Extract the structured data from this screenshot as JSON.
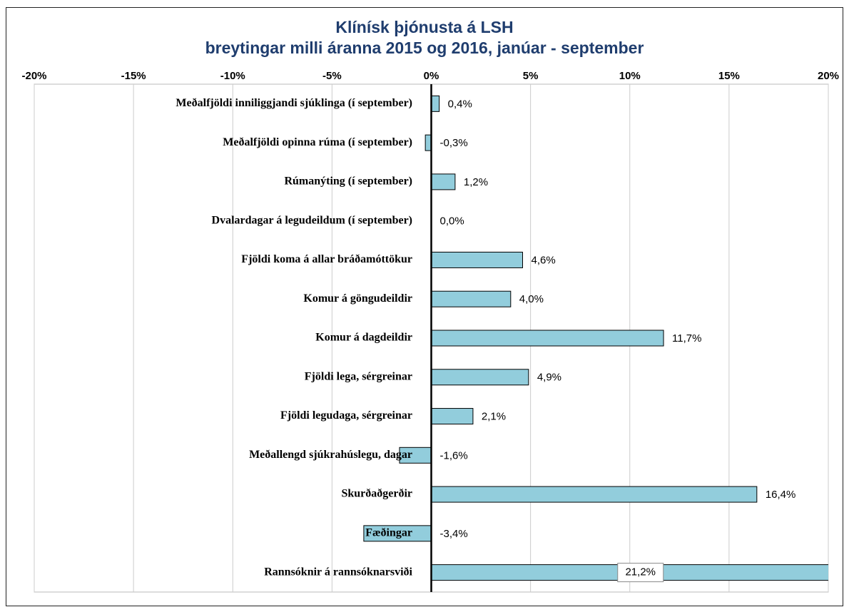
{
  "chart_data": {
    "type": "barh",
    "title": "Klínísk þjónusta á LSH",
    "subtitle": "breytingar milli áranna 2015 og 2016,  janúar - september",
    "categories": [
      "Meðalfjöldi inniliggjandi sjúklinga (í september)",
      "Meðalfjöldi opinna rúma (í september)",
      "Rúmanýting (í september)",
      "Dvalardagar á legudeildum (í september)",
      "Fjöldi koma á allar bráðamóttökur",
      "Komur á göngudeildir",
      "Komur á dagdeildir",
      "Fjöldi lega, sérgreinar",
      "Fjöldi legudaga, sérgreinar",
      "Meðallengd sjúkrahúslegu, dagar",
      "Skurðaðgerðir",
      "Fæðingar",
      "Rannsóknir á rannsóknarsviði"
    ],
    "values": [
      0.4,
      -0.3,
      1.2,
      0.0,
      4.6,
      4.0,
      11.7,
      4.9,
      2.1,
      -1.6,
      16.4,
      -3.4,
      21.2
    ],
    "value_labels": [
      "0,4%",
      "-0,3%",
      "1,2%",
      "0,0%",
      "4,6%",
      "4,0%",
      "11,7%",
      "4,9%",
      "2,1%",
      "-1,6%",
      "16,4%",
      "-3,4%",
      "21,2%"
    ],
    "color": "#92cddc",
    "xlim": [
      -20,
      20
    ],
    "xticks": [
      {
        "value": -20,
        "label": "-20%"
      },
      {
        "value": -15,
        "label": "-15%"
      },
      {
        "value": -10,
        "label": "-10%"
      },
      {
        "value": -5,
        "label": "-5%"
      },
      {
        "value": 0,
        "label": "0%"
      },
      {
        "value": 5,
        "label": "5%"
      },
      {
        "value": 10,
        "label": "10%"
      },
      {
        "value": 15,
        "label": "15%"
      },
      {
        "value": 20,
        "label": "20%"
      }
    ],
    "grid": true
  }
}
